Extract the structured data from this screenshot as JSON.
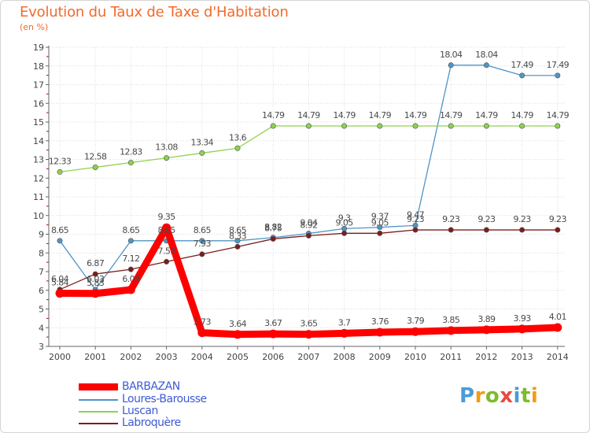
{
  "header": {
    "title": "Evolution du Taux de Taxe d'Habitation",
    "subtitle": "(en %)"
  },
  "logo": {
    "text": "Proxiti",
    "colors": [
      "#4a9bd9",
      "#f39c12",
      "#7dbb2a",
      "#e74c3c",
      "#4a9bd9",
      "#7dbb2a",
      "#f39c12"
    ]
  },
  "chart_data": {
    "type": "line",
    "title": "Evolution du Taux de Taxe d'Habitation",
    "ylabel": "(en %)",
    "xlabel": "",
    "ylim": [
      3,
      19
    ],
    "yticks": [
      3,
      4,
      5,
      6,
      7,
      8,
      9,
      10,
      11,
      12,
      13,
      14,
      15,
      16,
      17,
      18,
      19
    ],
    "categories": [
      "2000",
      "2001",
      "2002",
      "2003",
      "2004",
      "2005",
      "2006",
      "2007",
      "2008",
      "2009",
      "2010",
      "2011",
      "2012",
      "2013",
      "2014"
    ],
    "grid": true,
    "legend_position": "bottom-left",
    "series": [
      {
        "name": "BARBAZAN",
        "color": "#ff0000",
        "values": [
          5.84,
          5.83,
          6.03,
          9.35,
          3.73,
          3.64,
          3.67,
          3.65,
          3.7,
          3.76,
          3.79,
          3.85,
          3.89,
          3.93,
          4.01
        ],
        "labels": [
          "5.84",
          "5.83",
          "6.03",
          "9.35",
          "3.73",
          "3.64",
          "3.67",
          "3.65",
          "3.7",
          "3.76",
          "3.79",
          "3.85",
          "3.89",
          "3.93",
          "4.01"
        ]
      },
      {
        "name": "Loures-Barousse",
        "color": "#4f95c6",
        "values": [
          8.65,
          6.03,
          8.65,
          8.65,
          8.65,
          8.65,
          8.82,
          9.04,
          9.3,
          9.37,
          9.47,
          18.04,
          18.04,
          17.49,
          17.49
        ],
        "labels": [
          "8.65",
          "6.03",
          "8.65",
          "8.65",
          "8.65",
          "8.65",
          "8.82",
          "9.04",
          "9.3",
          "9.37",
          "9.47",
          "18.04",
          "18.04",
          "17.49",
          "17.49"
        ]
      },
      {
        "name": "Luscan",
        "color": "#8fd14f",
        "values": [
          12.33,
          12.58,
          12.83,
          13.08,
          13.34,
          13.6,
          14.79,
          14.79,
          14.79,
          14.79,
          14.79,
          14.79,
          14.79,
          14.79,
          14.79
        ],
        "labels": [
          "12.33",
          "12.58",
          "12.83",
          "13.08",
          "13.34",
          "13.6",
          "14.79",
          "14.79",
          "14.79",
          "14.79",
          "14.79",
          "14.79",
          "14.79",
          "14.79",
          "14.79"
        ]
      },
      {
        "name": "Labroquère",
        "color": "#7a1e1e",
        "values": [
          6.04,
          6.87,
          7.12,
          7.53,
          7.93,
          8.33,
          8.75,
          8.92,
          9.05,
          9.05,
          9.23,
          9.23,
          9.23,
          9.23,
          9.23
        ],
        "labels": [
          "6.04",
          "6.87",
          "7.12",
          "7.53",
          "7.93",
          "8.33",
          "8.75",
          "8.92",
          "9.05",
          "9.05",
          "9.23",
          "9.23",
          "9.23",
          "9.23",
          "9.23"
        ]
      }
    ]
  }
}
